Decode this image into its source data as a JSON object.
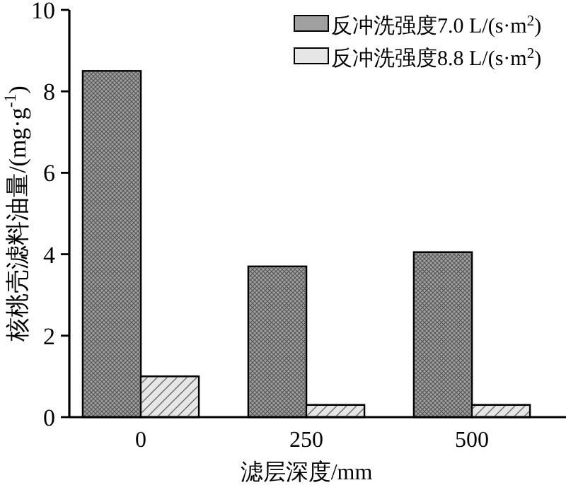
{
  "chart_data": {
    "type": "bar",
    "xlabel": "滤层深度/mm",
    "ylabel": "核桃壳滤料油量/(mg·g$^{-1}$)",
    "categories": [
      "0",
      "250",
      "500"
    ],
    "series": [
      {
        "name": "反冲洗强度7.0 L/(s·m$^{2}$)",
        "color": "#a0a0a0",
        "values": [
          8.5,
          3.7,
          4.05
        ]
      },
      {
        "name": "反冲洗强度8.8 L/(s·m$^{2}$)",
        "color": "#e6e6e6",
        "values": [
          1.0,
          0.3,
          0.3
        ]
      }
    ],
    "ylim": [
      0,
      10
    ],
    "yticks": [
      0,
      2,
      4,
      6,
      8,
      10
    ],
    "legend": "top right",
    "grid": false
  }
}
